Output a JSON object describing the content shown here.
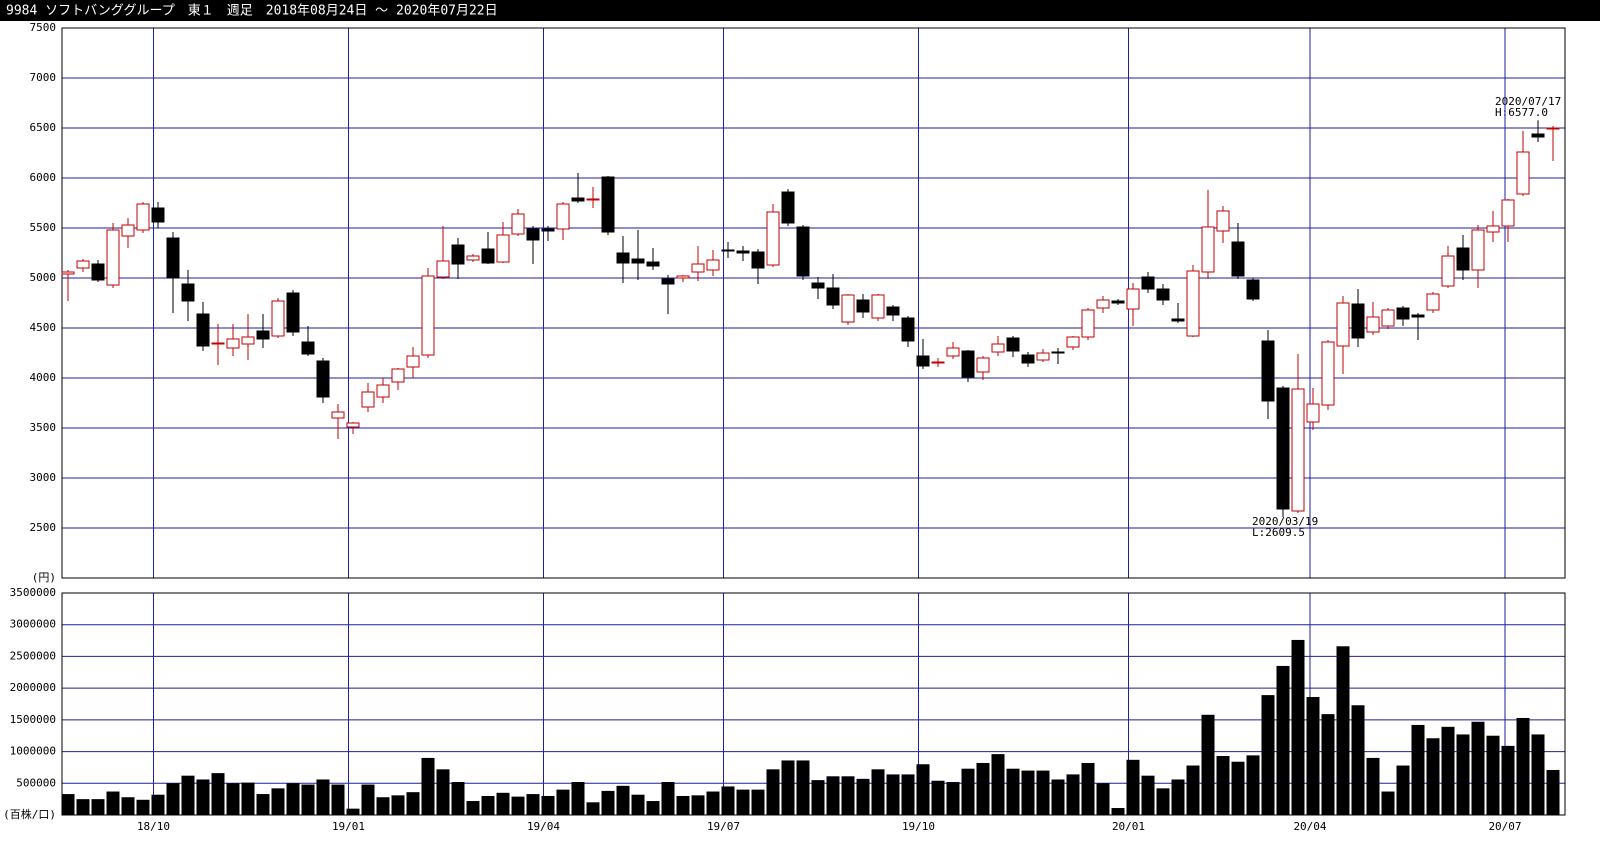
{
  "chart_data": [
    {
      "type": "candlestick",
      "title": "9984 ソフトバンググループ　東１　週足　2018年08月24日 ～ 2020年07月22日",
      "unit_label": "(円)",
      "annotations": [
        "2020/07/17",
        "H:6577.0",
        "2020/03/19",
        "L:2609.5"
      ],
      "up_color": "#c00000",
      "down_color": "#000000",
      "grid_color": "#1f1fa0",
      "open": [
        5040,
        5100,
        5140,
        4930,
        5420,
        5480,
        5700,
        5400,
        4940,
        4640,
        4340,
        4300,
        4340,
        4470,
        4420,
        4850,
        4360,
        4170,
        3600,
        3510,
        3710,
        3810,
        3960,
        4110,
        4230,
        5010,
        5330,
        5180,
        5290,
        5160,
        5440,
        5490,
        5490,
        5490,
        5800,
        5780,
        6010,
        5250,
        5190,
        5160,
        4990,
        5000,
        5060,
        5080,
        5280,
        5270,
        5260,
        5130,
        5860,
        5510,
        4950,
        4900,
        4560,
        4780,
        4600,
        4710,
        4600,
        4220,
        4150,
        4220,
        4270,
        4060,
        4260,
        4400,
        4230,
        4180,
        4260,
        4310,
        4410,
        4700,
        4770,
        4690,
        5010,
        4890,
        4590,
        4420,
        5060,
        5470,
        5360,
        4980,
        4370,
        3900,
        2670,
        3560,
        3730,
        4320,
        4740,
        4460,
        4520,
        4700,
        4630,
        4680,
        4920,
        5300,
        5080,
        5460,
        5520,
        5840,
        6440,
        6490
      ],
      "high": [
        5080,
        5190,
        5180,
        5550,
        5600,
        5760,
        5760,
        5460,
        5080,
        4760,
        4540,
        4540,
        4640,
        4640,
        4800,
        4880,
        4520,
        4200,
        3740,
        3560,
        3950,
        4000,
        4100,
        4310,
        5100,
        5520,
        5400,
        5240,
        5460,
        5560,
        5690,
        5520,
        5520,
        5760,
        6050,
        5910,
        6020,
        5420,
        5480,
        5300,
        5030,
        5030,
        5320,
        5280,
        5360,
        5320,
        5290,
        5740,
        5890,
        5530,
        5010,
        5040,
        4840,
        4840,
        4840,
        4730,
        4620,
        4390,
        4200,
        4360,
        4280,
        4220,
        4420,
        4420,
        4260,
        4290,
        4300,
        4420,
        4700,
        4820,
        4790,
        4950,
        5060,
        4940,
        4750,
        5130,
        5880,
        5720,
        5550,
        5000,
        4480,
        3920,
        4240,
        3900,
        4380,
        4820,
        4890,
        4760,
        4700,
        4720,
        4650,
        4860,
        5320,
        5430,
        5530,
        5670,
        5790,
        6470,
        6577,
        6520
      ],
      "low": [
        4770,
        5060,
        4960,
        4900,
        5300,
        5450,
        5500,
        4650,
        4570,
        4270,
        4130,
        4220,
        4180,
        4300,
        4400,
        4420,
        4220,
        3750,
        3390,
        3440,
        3660,
        3750,
        3880,
        4000,
        4200,
        4990,
        4990,
        5160,
        5140,
        5150,
        5420,
        5140,
        5370,
        5380,
        5750,
        5700,
        5430,
        4950,
        4980,
        5080,
        4640,
        4960,
        4970,
        5020,
        5200,
        5170,
        4940,
        5110,
        5520,
        4980,
        4790,
        4690,
        4530,
        4600,
        4570,
        4570,
        4310,
        4090,
        4110,
        4190,
        3960,
        3980,
        4220,
        4210,
        4110,
        4160,
        4140,
        4280,
        4380,
        4650,
        4730,
        4520,
        4850,
        4730,
        4550,
        4410,
        4990,
        5350,
        4990,
        4770,
        3590,
        2609.5,
        2650,
        3480,
        3680,
        4040,
        4310,
        4430,
        4490,
        4520,
        4380,
        4650,
        4900,
        4980,
        4900,
        5360,
        5360,
        5820,
        6360,
        6170
      ],
      "close": [
        5060,
        5170,
        4980,
        5480,
        5530,
        5740,
        5560,
        5000,
        4770,
        4320,
        4350,
        4390,
        4410,
        4390,
        4770,
        4460,
        4240,
        3810,
        3660,
        3550,
        3860,
        3930,
        4090,
        4220,
        5020,
        5170,
        5140,
        5220,
        5150,
        5430,
        5640,
        5380,
        5470,
        5740,
        5770,
        5790,
        5460,
        5150,
        5150,
        5120,
        4940,
        5020,
        5140,
        5180,
        5270,
        5250,
        5100,
        5660,
        5550,
        5020,
        4900,
        4730,
        4830,
        4660,
        4830,
        4630,
        4370,
        4120,
        4160,
        4300,
        4010,
        4200,
        4340,
        4270,
        4150,
        4250,
        4250,
        4410,
        4680,
        4780,
        4750,
        4890,
        4890,
        4780,
        4570,
        5070,
        5510,
        5670,
        5020,
        4790,
        3770,
        2690,
        3890,
        3740,
        4360,
        4750,
        4400,
        4610,
        4680,
        4590,
        4610,
        4840,
        5220,
        5080,
        5480,
        5520,
        5780,
        6260,
        6410,
        6500
      ],
      "ylim": [
        2000,
        7500
      ],
      "yticks": [
        2500,
        3000,
        3500,
        4000,
        4500,
        5000,
        5500,
        6000,
        6500,
        7000,
        7500
      ],
      "xlim": [
        -0.4,
        99.8
      ],
      "xticks": [
        {
          "value": 5.7,
          "label": "18/10"
        },
        {
          "value": 18.7,
          "label": "19/01"
        },
        {
          "value": 31.7,
          "label": "19/04"
        },
        {
          "value": 43.7,
          "label": "19/07"
        },
        {
          "value": 56.7,
          "label": "19/10"
        },
        {
          "value": 70.7,
          "label": "20/01"
        },
        {
          "value": 82.8,
          "label": "20/04"
        },
        {
          "value": 95.8,
          "label": "20/07"
        }
      ]
    },
    {
      "type": "bar",
      "unit_label": "(百株/口)",
      "color": "#000000",
      "values": [
        330000,
        250000,
        250000,
        370000,
        280000,
        240000,
        320000,
        500000,
        620000,
        560000,
        660000,
        500000,
        510000,
        330000,
        420000,
        500000,
        480000,
        560000,
        480000,
        100000,
        480000,
        280000,
        310000,
        360000,
        900000,
        720000,
        520000,
        220000,
        300000,
        350000,
        290000,
        330000,
        300000,
        400000,
        520000,
        200000,
        380000,
        460000,
        320000,
        220000,
        520000,
        300000,
        310000,
        370000,
        450000,
        400000,
        400000,
        720000,
        860000,
        860000,
        550000,
        610000,
        610000,
        570000,
        720000,
        640000,
        640000,
        800000,
        540000,
        520000,
        730000,
        820000,
        960000,
        730000,
        700000,
        700000,
        560000,
        640000,
        820000,
        500000,
        110000,
        870000,
        620000,
        420000,
        560000,
        780000,
        1580000,
        930000,
        840000,
        940000,
        1890000,
        2350000,
        2760000,
        1860000,
        1590000,
        2660000,
        1730000,
        900000,
        370000,
        780000,
        1420000,
        1210000,
        1390000,
        1270000,
        1470000,
        1250000,
        1090000,
        1530000,
        1270000,
        710000
      ],
      "ylim": [
        0,
        3500000
      ],
      "yticks": [
        500000,
        1000000,
        1500000,
        2000000,
        2500000,
        3000000,
        3500000
      ]
    }
  ]
}
